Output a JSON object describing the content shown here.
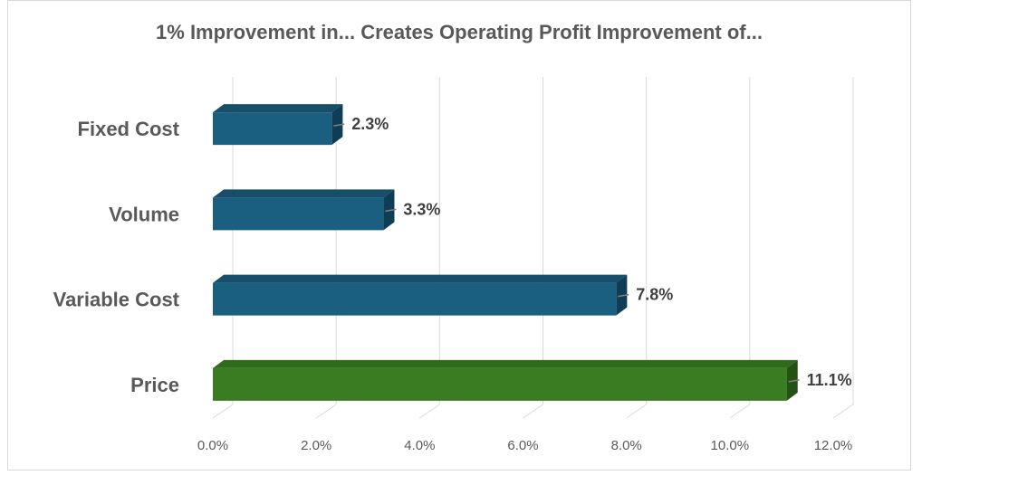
{
  "chart_data": {
    "type": "bar",
    "orientation": "horizontal",
    "title": "1% Improvement in... Creates Operating Profit Improvement of...",
    "categories": [
      "Fixed Cost",
      "Volume",
      "Variable Cost",
      "Price"
    ],
    "values": [
      2.3,
      3.3,
      7.8,
      11.1
    ],
    "data_labels": [
      "2.3%",
      "3.3%",
      "7.8%",
      "11.1%"
    ],
    "xlim": [
      0,
      12
    ],
    "x_ticks": [
      0,
      2,
      4,
      6,
      8,
      10,
      12
    ],
    "x_tick_labels": [
      "0.0%",
      "2.0%",
      "4.0%",
      "6.0%",
      "8.0%",
      "10.0%",
      "12.0%"
    ],
    "grid": true,
    "legend": "none",
    "bar_style": "3d",
    "colors": {
      "default_bar": "#1a5e80",
      "default_bar_top": "#174e6a",
      "default_bar_side": "#0f3d55",
      "highlight_bar": "#3a7c22",
      "highlight_bar_top": "#306a1b",
      "highlight_bar_side": "#245214",
      "gridline": "#d9d9d9"
    },
    "highlight_category": "Price"
  }
}
